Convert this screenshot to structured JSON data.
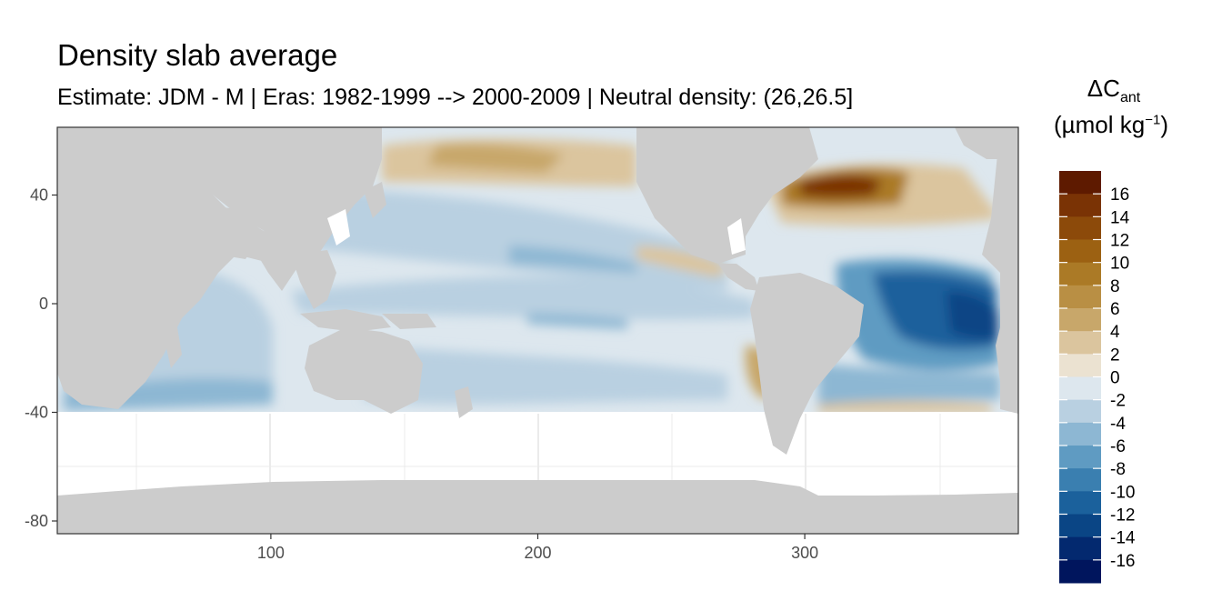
{
  "title": "Density slab average",
  "subtitle": "Estimate: JDM - M | Eras: 1982-1999 --> 2000-2009 | Neutral density: (26,26.5]",
  "legend": {
    "symbol": "ΔC",
    "subscript": "ant",
    "unit_open": "(µmol kg",
    "unit_sup": "−1",
    "unit_close": ")",
    "labels": [
      "16",
      "14",
      "12",
      "10",
      "8",
      "6",
      "4",
      "2",
      "0",
      "-2",
      "-4",
      "-6",
      "-8",
      "-10",
      "-12",
      "-14",
      "-16"
    ],
    "colors": [
      "#5e1a00",
      "#7a3305",
      "#8c4a0a",
      "#9c6112",
      "#ab7a26",
      "#b98f44",
      "#c8a76a",
      "#dbc59e",
      "#ebe2d1",
      "#dde7ee",
      "#b9d0e1",
      "#8db7d3",
      "#5f9bc2",
      "#3a7fb0",
      "#1b619c",
      "#0a4585",
      "#03296f",
      "#00155d"
    ]
  },
  "axes": {
    "x_ticks": [
      "100",
      "200",
      "300"
    ],
    "y_ticks": [
      "40",
      "0",
      "-40",
      "-80"
    ]
  },
  "colors": {
    "land": "#cccccc",
    "no_data": "#ffffff",
    "panel_border": "#333333",
    "grid": "#ebebeb"
  }
}
